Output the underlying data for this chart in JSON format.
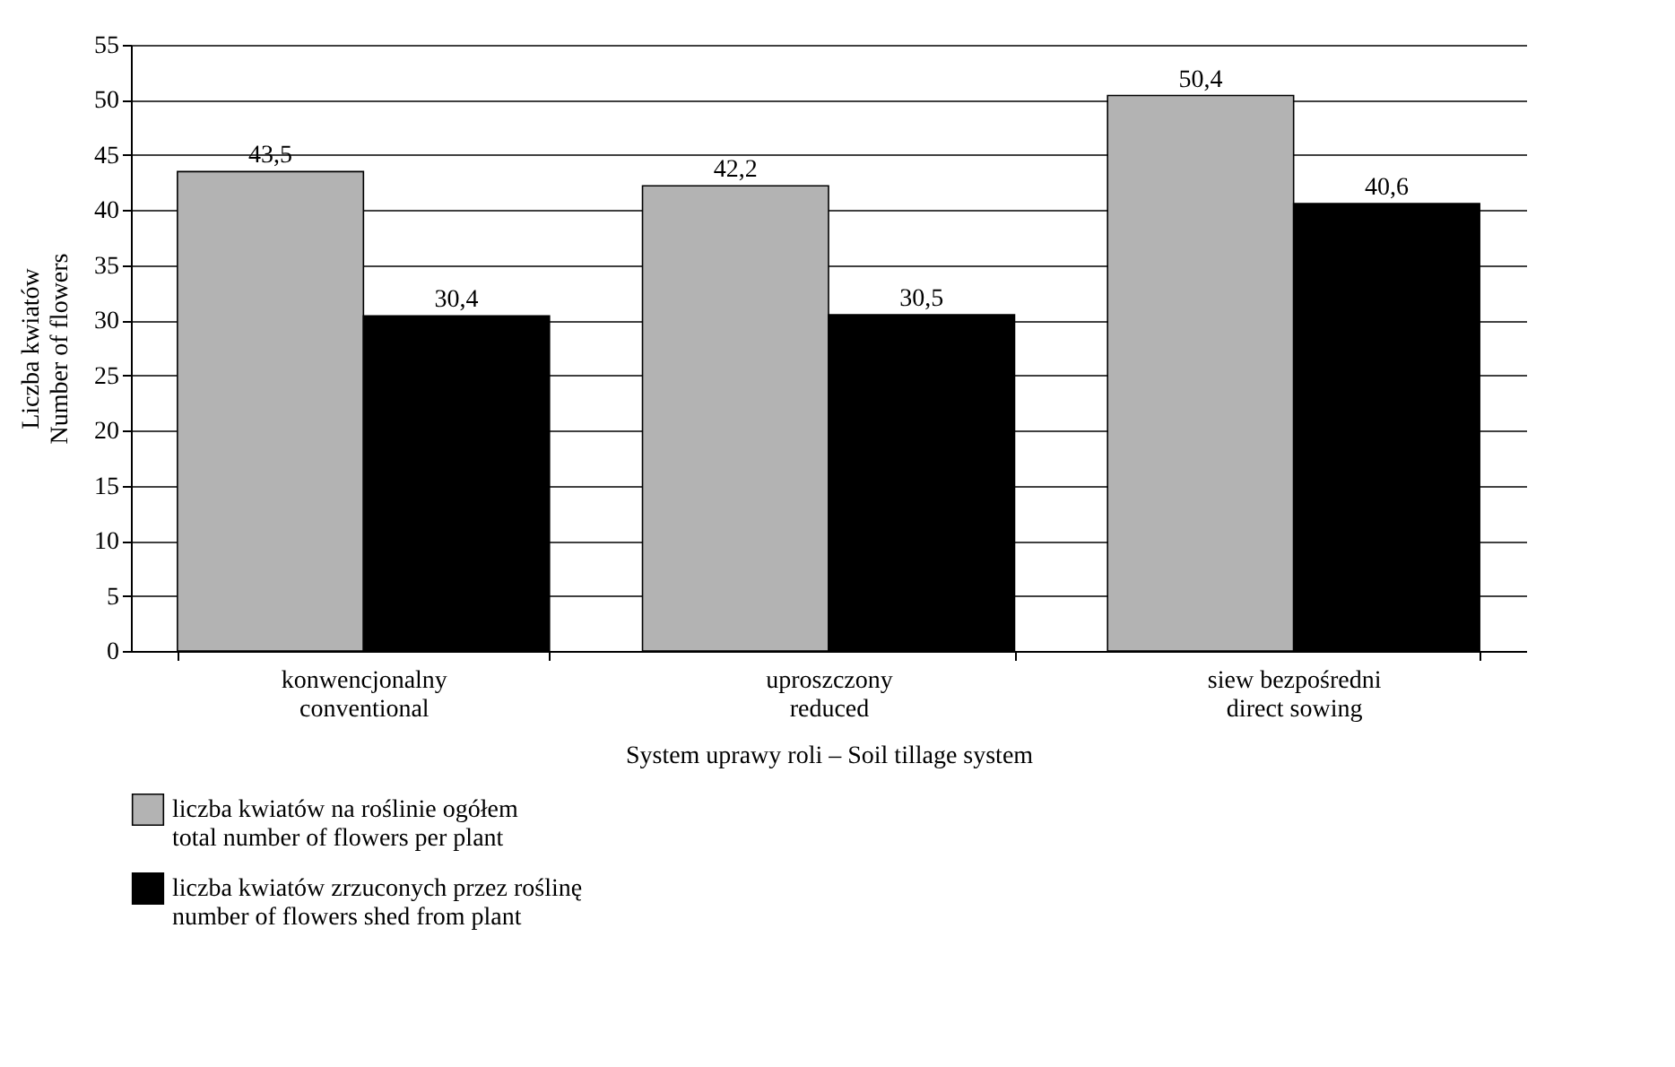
{
  "chart_data": {
    "type": "bar",
    "xlabel": "System uprawy roli – Soil tillage system",
    "ylabel": "Liczba kwiatów\nNumber of flowers",
    "categories": [
      "konwencjonalny\nconventional",
      "uproszczony\nreduced",
      "siew bezpośredni\ndirect sowing"
    ],
    "series": [
      {
        "name": "liczba kwiatów na roślinie ogółem\ntotal number of flowers per plant",
        "color": "#b3b3b3",
        "values": [
          43.5,
          42.2,
          50.4
        ],
        "value_labels": [
          "43,5",
          "42,2",
          "50,4"
        ]
      },
      {
        "name": "liczba kwiatów zrzuconych przez roślinę\nnumber of flowers shed from plant",
        "color": "#000000",
        "values": [
          30.4,
          30.5,
          40.6
        ],
        "value_labels": [
          "30,4",
          "30,5",
          "40,6"
        ]
      }
    ],
    "ylim": [
      0,
      55
    ],
    "yticks": [
      0,
      5,
      10,
      15,
      20,
      25,
      30,
      35,
      40,
      45,
      50,
      55
    ],
    "grid": "y",
    "legend": "bottom"
  }
}
